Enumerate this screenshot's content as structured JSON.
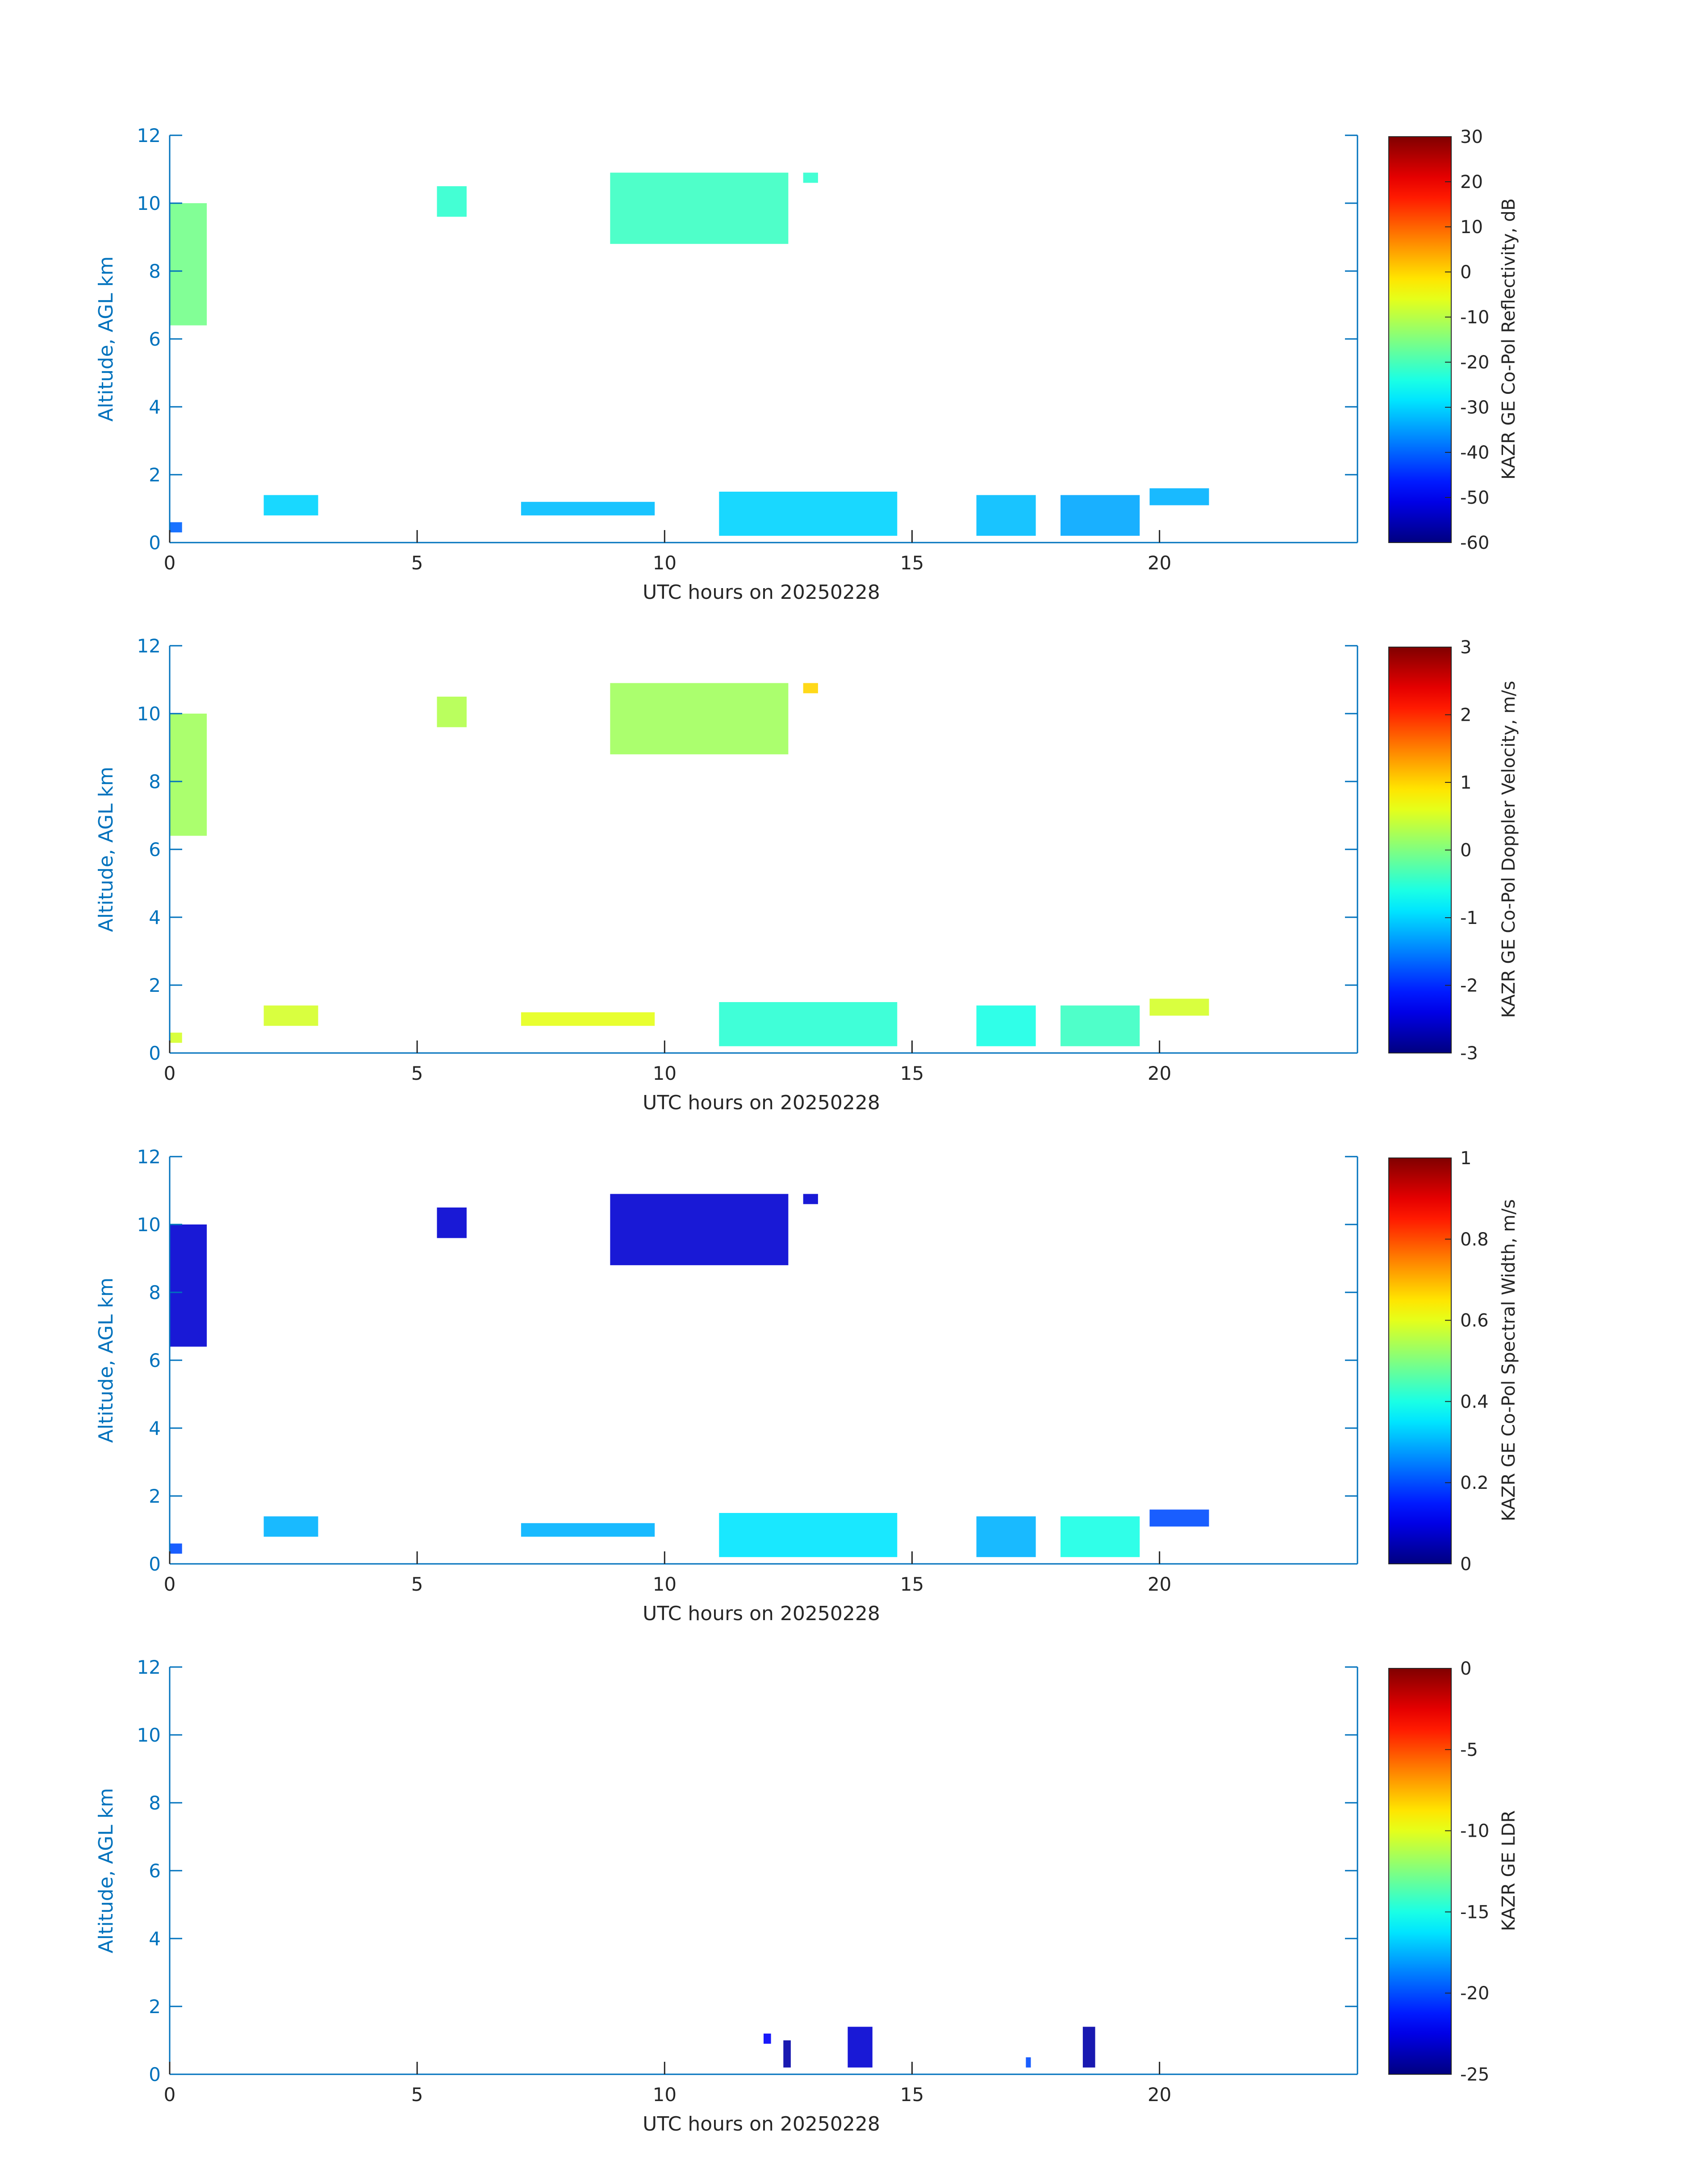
{
  "figure": {
    "background": "#ffffff"
  },
  "chart_data": [
    {
      "type": "heatmap",
      "title": "",
      "xlabel": "UTC hours on 20250228",
      "ylabel": "Altitude, AGL km",
      "xlim": [
        0,
        24
      ],
      "ylim": [
        0,
        12
      ],
      "xticks": [
        0,
        5,
        10,
        15,
        20
      ],
      "yticks": [
        0,
        2,
        4,
        6,
        8,
        10,
        12
      ],
      "colorbar": {
        "label": "KAZR GE Co-Pol Reflectivity, dB",
        "min": -60,
        "max": 30,
        "ticks": [
          -60,
          -50,
          -40,
          -30,
          -20,
          -10,
          0,
          10,
          20,
          30
        ],
        "colormap": "jet"
      },
      "echoes": [
        {
          "t0": 0.0,
          "t1": 0.75,
          "h0": 6.4,
          "h1": 10.0,
          "value": -16
        },
        {
          "t0": 5.4,
          "t1": 6.0,
          "h0": 9.6,
          "h1": 10.5,
          "value": -22
        },
        {
          "t0": 8.9,
          "t1": 12.5,
          "h0": 8.8,
          "h1": 10.9,
          "value": -21
        },
        {
          "t0": 12.8,
          "t1": 13.1,
          "h0": 10.6,
          "h1": 10.9,
          "value": -22
        },
        {
          "t0": 0.0,
          "t1": 0.25,
          "h0": 0.3,
          "h1": 0.6,
          "value": -40
        },
        {
          "t0": 1.9,
          "t1": 3.0,
          "h0": 0.8,
          "h1": 1.4,
          "value": -30
        },
        {
          "t0": 7.1,
          "t1": 9.8,
          "h0": 0.8,
          "h1": 1.2,
          "value": -32
        },
        {
          "t0": 11.1,
          "t1": 14.7,
          "h0": 0.2,
          "h1": 1.5,
          "value": -30
        },
        {
          "t0": 16.3,
          "t1": 17.5,
          "h0": 0.2,
          "h1": 1.4,
          "value": -32
        },
        {
          "t0": 18.0,
          "t1": 19.6,
          "h0": 0.2,
          "h1": 1.4,
          "value": -34
        },
        {
          "t0": 19.8,
          "t1": 21.0,
          "h0": 1.1,
          "h1": 1.6,
          "value": -33
        }
      ]
    },
    {
      "type": "heatmap",
      "title": "",
      "xlabel": "UTC hours on 20250228",
      "ylabel": "Altitude, AGL km",
      "xlim": [
        0,
        24
      ],
      "ylim": [
        0,
        12
      ],
      "xticks": [
        0,
        5,
        10,
        15,
        20
      ],
      "yticks": [
        0,
        2,
        4,
        6,
        8,
        10,
        12
      ],
      "colorbar": {
        "label": "KAZR GE Co-Pol Doppler Velocity, m/s",
        "min": -3,
        "max": 3,
        "ticks": [
          -3,
          -2,
          -1,
          0,
          1,
          2,
          3
        ],
        "colormap": "jet"
      },
      "echoes": [
        {
          "t0": 0.0,
          "t1": 0.75,
          "h0": 6.4,
          "h1": 10.0,
          "value": 0.2
        },
        {
          "t0": 5.4,
          "t1": 6.0,
          "h0": 9.6,
          "h1": 10.5,
          "value": 0.3
        },
        {
          "t0": 8.9,
          "t1": 12.5,
          "h0": 8.8,
          "h1": 10.9,
          "value": 0.2
        },
        {
          "t0": 12.8,
          "t1": 13.1,
          "h0": 10.6,
          "h1": 10.9,
          "value": 1.0
        },
        {
          "t0": 0.0,
          "t1": 0.25,
          "h0": 0.3,
          "h1": 0.6,
          "value": 0.5
        },
        {
          "t0": 1.9,
          "t1": 3.0,
          "h0": 0.8,
          "h1": 1.4,
          "value": 0.5
        },
        {
          "t0": 7.1,
          "t1": 9.8,
          "h0": 0.8,
          "h1": 1.2,
          "value": 0.6
        },
        {
          "t0": 11.1,
          "t1": 14.7,
          "h0": 0.2,
          "h1": 1.5,
          "value": -0.5
        },
        {
          "t0": 16.3,
          "t1": 17.5,
          "h0": 0.2,
          "h1": 1.4,
          "value": -0.6
        },
        {
          "t0": 18.0,
          "t1": 19.6,
          "h0": 0.2,
          "h1": 1.4,
          "value": -0.4
        },
        {
          "t0": 19.8,
          "t1": 21.0,
          "h0": 1.1,
          "h1": 1.6,
          "value": 0.5
        }
      ]
    },
    {
      "type": "heatmap",
      "title": "",
      "xlabel": "UTC hours on 20250228",
      "ylabel": "Altitude, AGL km",
      "xlim": [
        0,
        24
      ],
      "ylim": [
        0,
        12
      ],
      "xticks": [
        0,
        5,
        10,
        15,
        20
      ],
      "yticks": [
        0,
        2,
        4,
        6,
        8,
        10,
        12
      ],
      "colorbar": {
        "label": "KAZR GE Co-Pol Spectral Width, m/s",
        "min": 0,
        "max": 1,
        "ticks": [
          0,
          0.2,
          0.4,
          0.6,
          0.8,
          1
        ],
        "colormap": "jet"
      },
      "echoes": [
        {
          "t0": 0.0,
          "t1": 0.75,
          "h0": 6.4,
          "h1": 10.0,
          "value": 0.08
        },
        {
          "t0": 5.4,
          "t1": 6.0,
          "h0": 9.6,
          "h1": 10.5,
          "value": 0.08
        },
        {
          "t0": 8.9,
          "t1": 12.5,
          "h0": 8.8,
          "h1": 10.9,
          "value": 0.08
        },
        {
          "t0": 12.8,
          "t1": 13.1,
          "h0": 10.6,
          "h1": 10.9,
          "value": 0.08
        },
        {
          "t0": 0.0,
          "t1": 0.25,
          "h0": 0.3,
          "h1": 0.6,
          "value": 0.2
        },
        {
          "t0": 1.9,
          "t1": 3.0,
          "h0": 0.8,
          "h1": 1.4,
          "value": 0.3
        },
        {
          "t0": 7.1,
          "t1": 9.8,
          "h0": 0.8,
          "h1": 1.2,
          "value": 0.3
        },
        {
          "t0": 11.1,
          "t1": 14.7,
          "h0": 0.2,
          "h1": 1.5,
          "value": 0.35
        },
        {
          "t0": 16.3,
          "t1": 17.5,
          "h0": 0.2,
          "h1": 1.4,
          "value": 0.3
        },
        {
          "t0": 18.0,
          "t1": 19.6,
          "h0": 0.2,
          "h1": 1.4,
          "value": 0.4
        },
        {
          "t0": 19.8,
          "t1": 21.0,
          "h0": 1.1,
          "h1": 1.6,
          "value": 0.2
        }
      ]
    },
    {
      "type": "heatmap",
      "title": "",
      "xlabel": "UTC hours on 20250228",
      "ylabel": "Altitude, AGL km",
      "xlim": [
        0,
        24
      ],
      "ylim": [
        0,
        12
      ],
      "xticks": [
        0,
        5,
        10,
        15,
        20
      ],
      "yticks": [
        0,
        2,
        4,
        6,
        8,
        10,
        12
      ],
      "colorbar": {
        "label": "KAZR GE LDR",
        "min": -25,
        "max": 0,
        "ticks": [
          -25,
          -20,
          -15,
          -10,
          -5,
          0
        ],
        "colormap": "jet"
      },
      "echoes": [
        {
          "t0": 12.0,
          "t1": 12.15,
          "h0": 0.9,
          "h1": 1.2,
          "value": -22
        },
        {
          "t0": 12.4,
          "t1": 12.55,
          "h0": 0.2,
          "h1": 1.0,
          "value": -24
        },
        {
          "t0": 13.7,
          "t1": 14.2,
          "h0": 0.2,
          "h1": 1.4,
          "value": -23
        },
        {
          "t0": 17.3,
          "t1": 17.4,
          "h0": 0.2,
          "h1": 0.5,
          "value": -20
        },
        {
          "t0": 18.45,
          "t1": 18.7,
          "h0": 0.2,
          "h1": 1.4,
          "value": -24
        }
      ]
    }
  ],
  "colors": {
    "axis": "#0072bd",
    "text": "#262626"
  }
}
